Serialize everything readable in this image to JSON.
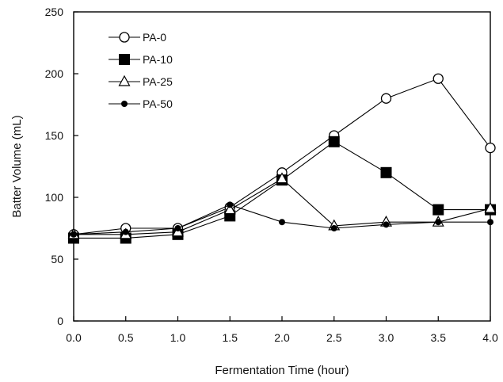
{
  "chart_data": {
    "type": "line",
    "title": "",
    "xlabel": "Fermentation Time (hour)",
    "ylabel": "Batter Volume (mL)",
    "xlim": [
      0,
      4
    ],
    "ylim": [
      0,
      250
    ],
    "x_ticks": [
      "0.0",
      "0.5",
      "1.0",
      "1.5",
      "2.0",
      "2.5",
      "3.0",
      "3.5",
      "4.0"
    ],
    "y_ticks": [
      "0",
      "50",
      "100",
      "150",
      "200",
      "250"
    ],
    "grid": false,
    "legend_position": "top-left",
    "x": [
      0.0,
      0.5,
      1.0,
      1.5,
      2.0,
      2.5,
      3.0,
      3.5,
      4.0
    ],
    "series": [
      {
        "name": "PA-0",
        "marker": "open-circle",
        "values": [
          70,
          75,
          75,
          92,
          120,
          150,
          180,
          196,
          140
        ]
      },
      {
        "name": "PA-10",
        "marker": "filled-square",
        "values": [
          67,
          67,
          70,
          85,
          114,
          145,
          120,
          90,
          90
        ]
      },
      {
        "name": "PA-25",
        "marker": "open-triangle",
        "values": [
          70,
          70,
          72,
          90,
          115,
          77,
          80,
          80,
          91
        ]
      },
      {
        "name": "PA-50",
        "marker": "filled-circle",
        "values": [
          70,
          72,
          75,
          94,
          80,
          75,
          78,
          80,
          80
        ]
      }
    ]
  }
}
